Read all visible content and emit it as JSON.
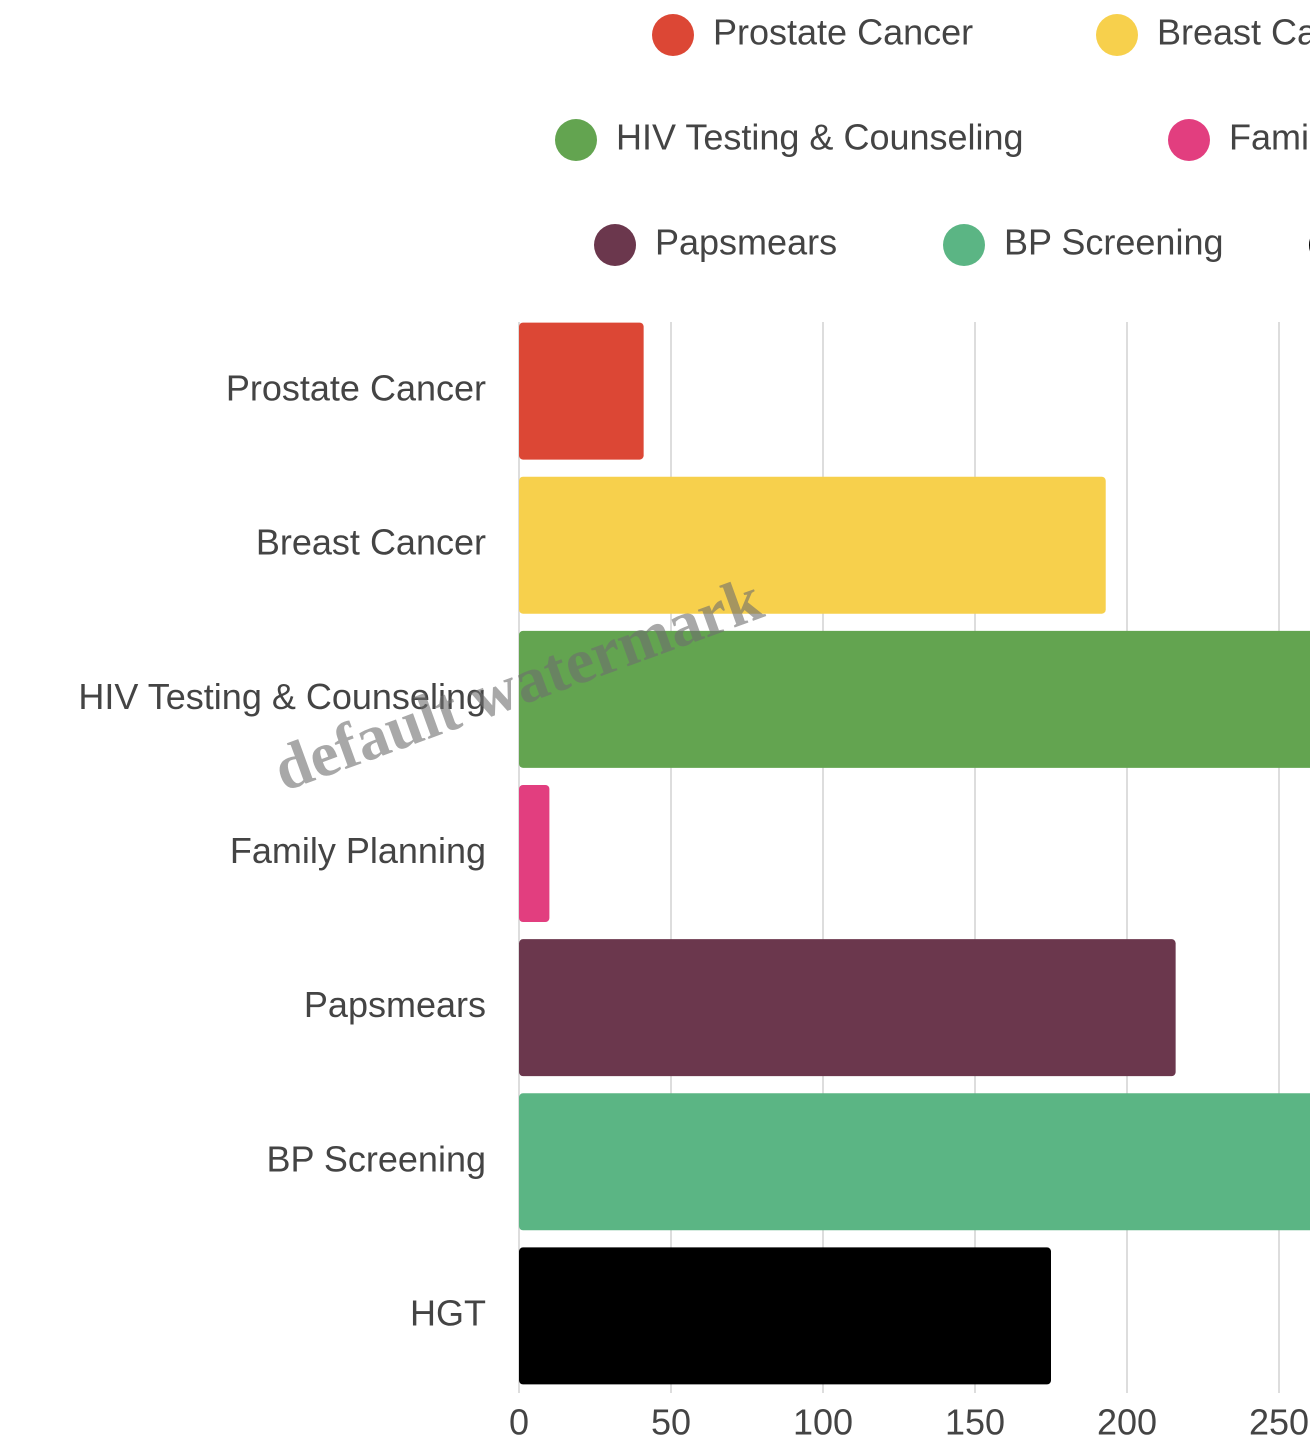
{
  "chart_data": {
    "type": "bar",
    "orientation": "horizontal",
    "categories": [
      "Prostate Cancer",
      "Breast Cancer",
      "HIV Testing & Counseling",
      "Family Planning",
      "Papsmears",
      "BP Screening",
      "HGT"
    ],
    "values": [
      41,
      193,
      280,
      10,
      216,
      290,
      175
    ],
    "colors": [
      "#dc4735",
      "#f7d04c",
      "#63a450",
      "#e23e7f",
      "#6b374d",
      "#5bb584",
      "#000000"
    ],
    "xlim": [
      0,
      300
    ],
    "xticks": [
      0,
      50,
      100,
      150,
      200,
      250
    ],
    "grid": true,
    "legend": "top"
  },
  "watermark": "default watermark"
}
